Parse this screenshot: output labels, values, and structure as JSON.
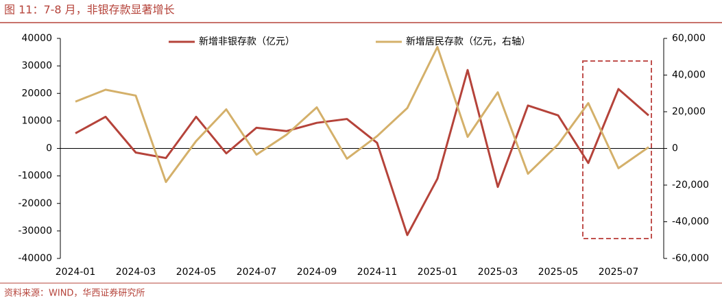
{
  "title": "图 11：7-8 月，非银存款显著增长",
  "source": "资料来源：WIND，华西证券研究所",
  "chart_data": {
    "type": "line",
    "categories": [
      "2024-01",
      null,
      "2024-03",
      null,
      "2024-05",
      null,
      "2024-07",
      null,
      "2024-09",
      null,
      "2024-11",
      null,
      "2025-01",
      null,
      "2025-03",
      null,
      "2025-05",
      null,
      "2025-07",
      null
    ],
    "series": [
      {
        "name": "新增非银存款（亿元）",
        "color": "#b5433a",
        "axis": "y",
        "values": [
          5500,
          11500,
          -1500,
          -3500,
          11500,
          -1800,
          7500,
          6300,
          9300,
          10700,
          2000,
          -31500,
          -11000,
          28500,
          -14000,
          15600,
          12000,
          -5300,
          21600,
          12000
        ]
      },
      {
        "name": "新增居民存款（亿元，右轴）",
        "color": "#d4b06a",
        "axis": "y2",
        "values": [
          25500,
          32000,
          28800,
          -18300,
          4000,
          21300,
          -3400,
          7500,
          22400,
          -5600,
          6700,
          22000,
          55300,
          6300,
          30600,
          -13800,
          2200,
          24700,
          -10800,
          700
        ]
      }
    ],
    "ylim": [
      -40000,
      40000
    ],
    "yticks": [
      -40000,
      -30000,
      -20000,
      -10000,
      0,
      10000,
      20000,
      30000,
      40000
    ],
    "y2lim": [
      -60000,
      60000
    ],
    "y2ticks": [
      {
        "value": -60000,
        "label": "-60,000"
      },
      {
        "value": -40000,
        "label": "-40,000"
      },
      {
        "value": -20000,
        "label": "-20,000"
      },
      0,
      {
        "value": 20000,
        "label": "20,000"
      },
      {
        "value": 40000,
        "label": "40,000"
      },
      {
        "value": 60000,
        "label": "60,000"
      }
    ],
    "grid": false
  }
}
